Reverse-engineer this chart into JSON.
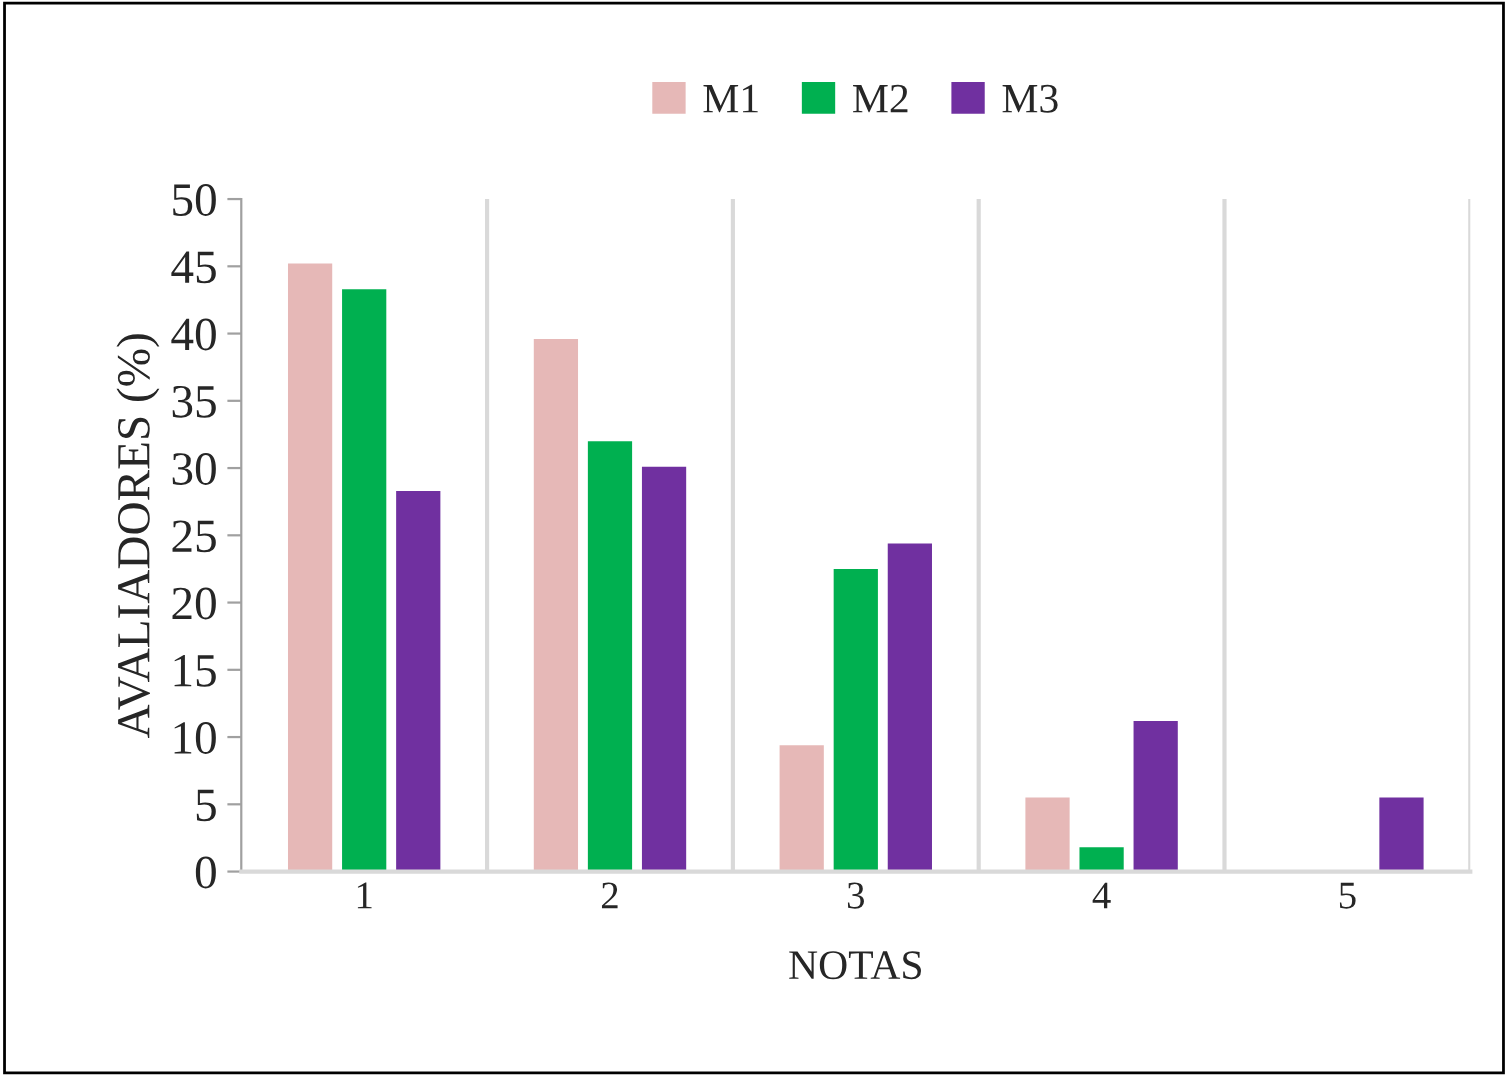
{
  "chart_data": {
    "type": "bar",
    "xlabel": "NOTAS",
    "ylabel": "AVALIADORES (%)",
    "categories": [
      "1",
      "2",
      "3",
      "4",
      "5"
    ],
    "series": [
      {
        "name": "M1",
        "color": "#e6b8b7",
        "values": [
          45.2,
          39.6,
          9.4,
          5.5,
          0
        ]
      },
      {
        "name": "M2",
        "color": "#00b050",
        "values": [
          43.3,
          32.0,
          22.5,
          1.8,
          0
        ]
      },
      {
        "name": "M3",
        "color": "#7030a0",
        "values": [
          28.3,
          30.1,
          24.4,
          11.2,
          5.5
        ]
      }
    ],
    "ylim": [
      0,
      50
    ],
    "yticks": [
      0,
      5,
      10,
      15,
      20,
      25,
      30,
      35,
      40,
      45,
      50
    ],
    "grid": "x",
    "legend": "top"
  }
}
